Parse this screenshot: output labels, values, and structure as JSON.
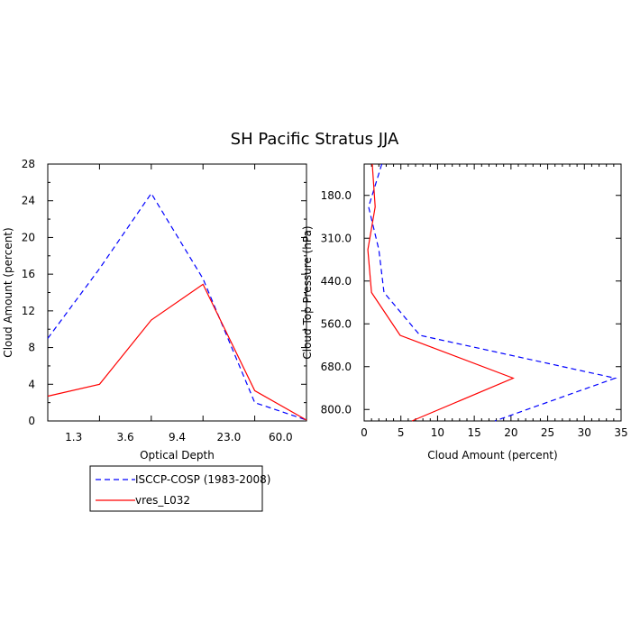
{
  "figure": {
    "title": "SH Pacific Stratus JJA"
  },
  "chart_data": [
    {
      "type": "line",
      "xlabel": "Optical Depth",
      "ylabel": "Cloud Amount (percent)",
      "x_tick_labels": [
        "1.3",
        "3.6",
        "9.4",
        "23.0",
        "60.0"
      ],
      "ylim": [
        0,
        28
      ],
      "y_tick_labels": [
        "0",
        "4",
        "8",
        "12",
        "16",
        "20",
        "24",
        "28"
      ],
      "grid": false,
      "series": [
        {
          "name": "ISCCP-COSP (1983-2008)",
          "color": "#0000ff",
          "dash": "dashed",
          "values": [
            9.0,
            16.6,
            24.8,
            15.5,
            2.0,
            0.1
          ]
        },
        {
          "name": "vres_L032",
          "color": "#ff0000",
          "dash": "solid",
          "values": [
            2.7,
            4.0,
            11.0,
            14.9,
            3.3,
            0.1
          ]
        }
      ]
    },
    {
      "type": "line",
      "xlabel": "Cloud Amount (percent)",
      "ylabel": "Cloud Top Pressure (hPa)",
      "xlim": [
        0,
        35
      ],
      "x_tick_labels": [
        "0",
        "5",
        "10",
        "15",
        "20",
        "25",
        "30",
        "35"
      ],
      "y_tick_labels": [
        "180.0",
        "310.0",
        "440.0",
        "560.0",
        "680.0",
        "800.0"
      ],
      "grid": false,
      "series": [
        {
          "name": "ISCCP-COSP (1983-2008)",
          "color": "#0000ff",
          "dash": "dashed",
          "values": [
            2.4,
            0.6,
            2.0,
            2.7,
            7.6,
            34.2,
            17.8
          ]
        },
        {
          "name": "vres_L032",
          "color": "#ff0000",
          "dash": "solid",
          "values": [
            1.1,
            1.5,
            0.5,
            1.0,
            4.9,
            20.3,
            6.5
          ]
        }
      ]
    }
  ],
  "legend": {
    "placement": "bottom-left",
    "entries": [
      "ISCCP-COSP (1983-2008)",
      "vres_L032"
    ]
  }
}
